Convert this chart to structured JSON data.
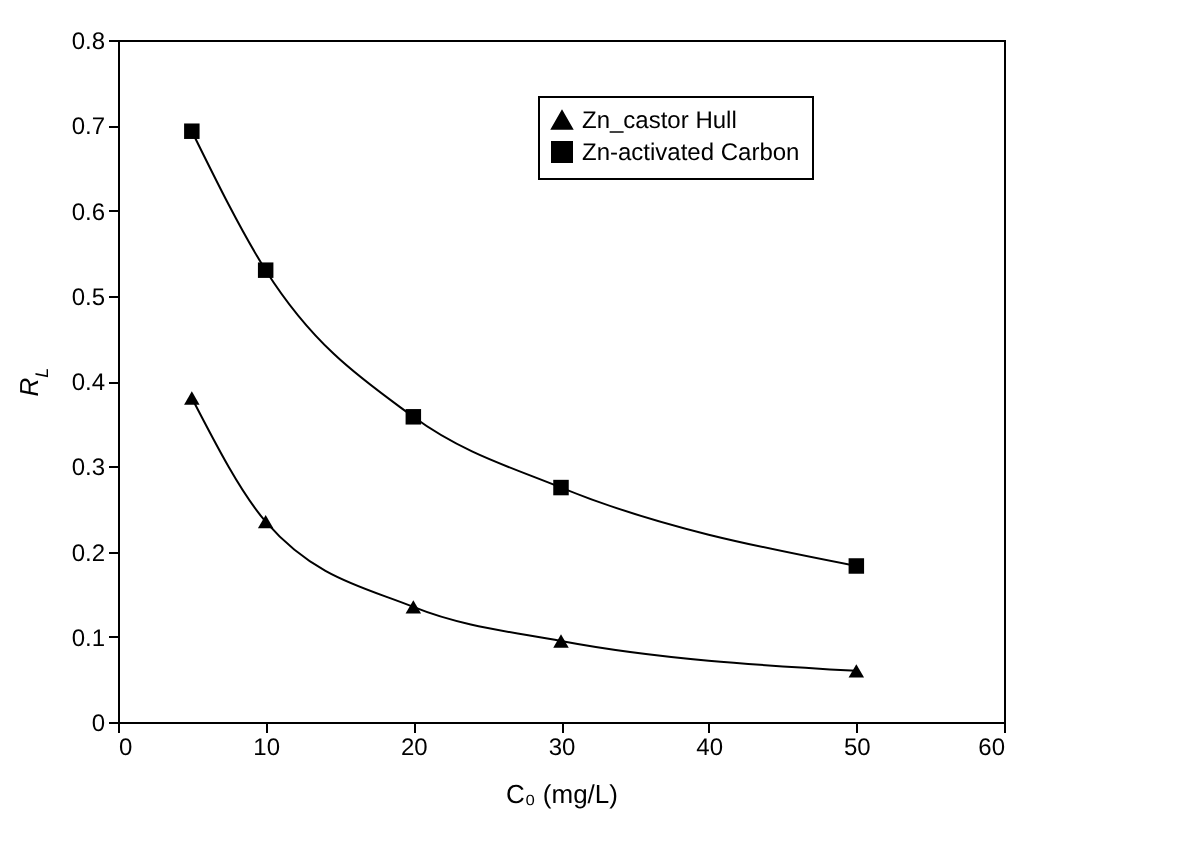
{
  "chart_data": {
    "type": "line",
    "xlabel": "C₀  (mg/L)",
    "ylabel": "R$_{L}$",
    "x": [
      5,
      10,
      20,
      30,
      50
    ],
    "series": [
      {
        "name": "Zn_castor Hull",
        "color": "#000000",
        "marker": "triangle",
        "values": [
          0.38,
          0.235,
          0.135,
          0.095,
          0.06
        ]
      },
      {
        "name": "Zn-activated Carbon",
        "color": "#000000",
        "marker": "square",
        "values": [
          0.693,
          0.53,
          0.358,
          0.275,
          0.183
        ]
      }
    ],
    "xlim": [
      0,
      60
    ],
    "xticks": [
      0,
      10,
      20,
      30,
      40,
      50,
      60
    ],
    "ylim": [
      0,
      0.8
    ],
    "yticks": [
      0,
      0.1,
      0.2,
      0.3,
      0.4,
      0.5,
      0.6,
      0.7,
      0.8
    ],
    "grid": false,
    "legend": "top right",
    "line_style": "solid"
  }
}
